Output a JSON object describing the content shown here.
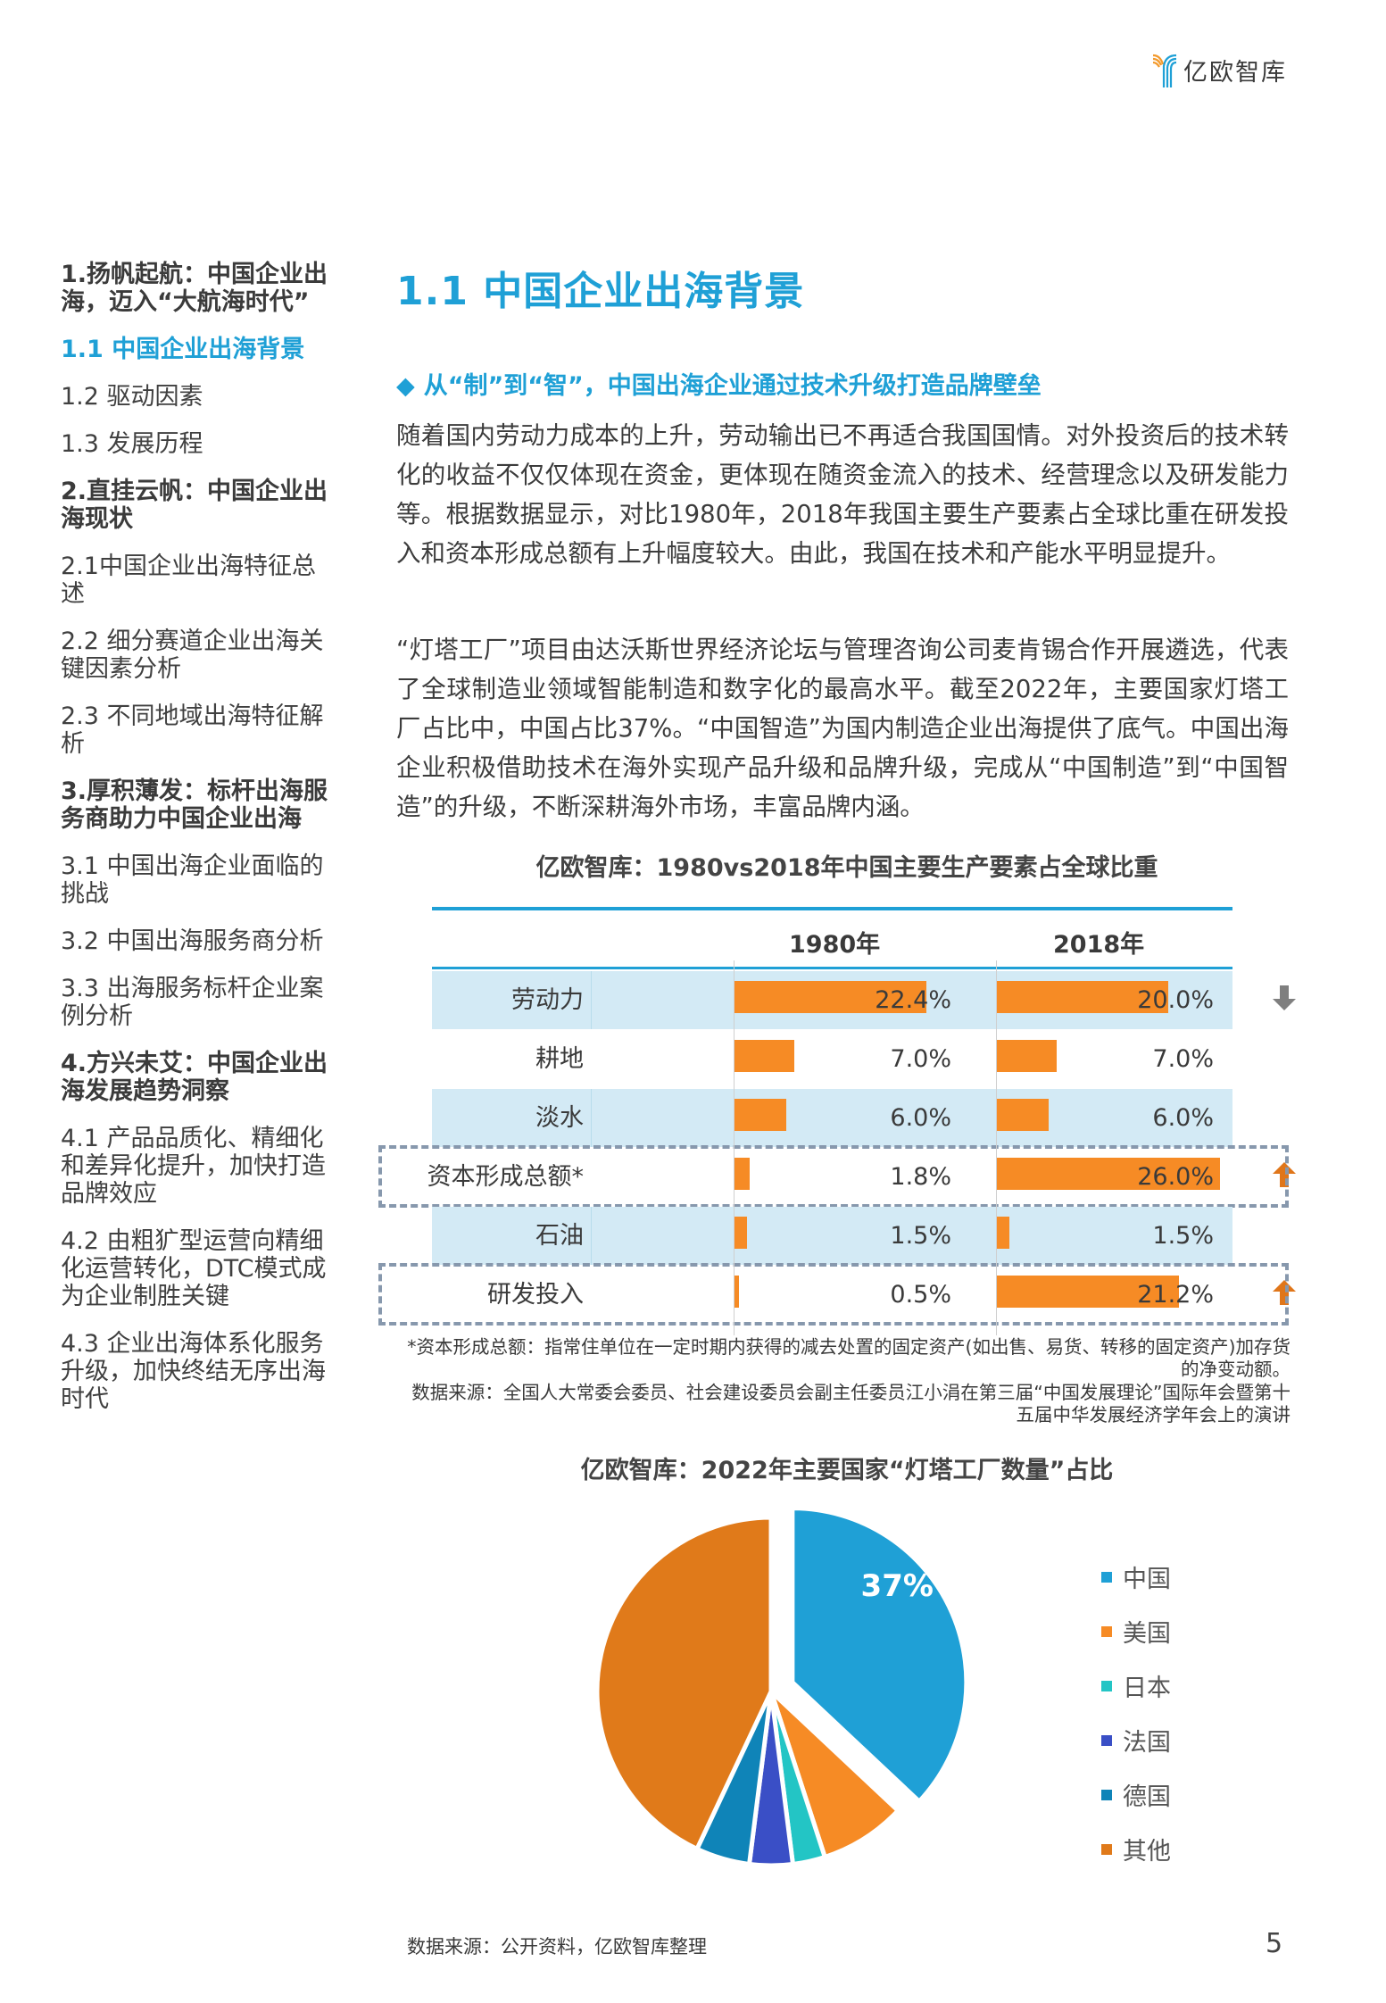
{
  "header": {
    "logo_text": "亿欧智库",
    "logo_colors": {
      "orange": "#f39a2c",
      "blue": "#1fa0d6"
    }
  },
  "toc": {
    "items": [
      {
        "label": "1.扬帆起航：中国企业出海，迈入“大航海时代”",
        "style": "bold"
      },
      {
        "label": "1.1 中国企业出海背景",
        "style": "active"
      },
      {
        "label": "1.2 驱动因素",
        "style": "normal"
      },
      {
        "label": "1.3 发展历程",
        "style": "normal"
      },
      {
        "label": "2.直挂云帆：中国企业出海现状",
        "style": "bold"
      },
      {
        "label": "2.1中国企业出海特征总述",
        "style": "normal"
      },
      {
        "label": "2.2  细分赛道企业出海关键因素分析",
        "style": "normal"
      },
      {
        "label": "2.3  不同地域出海特征解析",
        "style": "normal"
      },
      {
        "label": "3.厚积薄发：标杆出海服务商助力中国企业出海",
        "style": "bold"
      },
      {
        "label": "3.1  中国出海企业面临的挑战",
        "style": "normal"
      },
      {
        "label": "3.2  中国出海服务商分析",
        "style": "normal"
      },
      {
        "label": "3.3  出海服务标杆企业案例分析",
        "style": "normal"
      },
      {
        "label": "4.方兴未艾：中国企业出海发展趋势洞察",
        "style": "bold"
      },
      {
        "label": "4.1  产品品质化、精细化和差异化提升，加快打造品牌效应",
        "style": "normal"
      },
      {
        "label": "4.2  由粗犷型运营向精细化运营转化，DTC模式成为企业制胜关键",
        "style": "normal"
      },
      {
        "label": "4.3  企业出海体系化服务升级，加快终结无序出海时代",
        "style": "normal"
      }
    ]
  },
  "main": {
    "title": "1.1 中国企业出海背景",
    "subtitle_icon": "◆",
    "subtitle": "从“制”到“智”，中国出海企业通过技术升级打造品牌壁垒",
    "paragraphs": [
      "随着国内劳动力成本的上升，劳动输出已不再适合我国国情。对外投资后的技术转化的收益不仅仅体现在资金，更体现在随资金流入的技术、经营理念以及研发能力等。根据数据显示，对比1980年，2018年我国主要生产要素占全球比重在研发投入和资本形成总额有上升幅度较大。由此，我国在技术和产能水平明显提升。",
      "“灯塔工厂”项目由达沃斯世界经济论坛与管理咨询公司麦肯锡合作开展遴选，代表了全球制造业领域智能制造和数字化的最高水平。截至2022年，主要国家灯塔工厂占比中，中国占比37%。“中国智造”为国内制造企业出海提供了底气。中国出海企业积极借助技术在海外实现产品升级和品牌升级，完成从“中国制造”到“中国智造”的升级，不断深耕海外市场，丰富品牌内涵。"
    ],
    "note_capital": "*资本形成总额：指常住单位在一定时期内获得的减去处置的固定资产(如出售、易货、转移的固定资产)加存货的净变动额。",
    "note_source": "数据来源：全国人大常委会委员、社会建设委员会副主任委员江小涓在第三届“中国发展理论”国际年会暨第十五届中华发展经济学年会上的演讲",
    "footer_source": "数据来源：公开资料，亿欧智库整理",
    "page_number": "5"
  },
  "chart_data": [
    {
      "type": "table",
      "title": "亿欧智库：1980vs2018年中国主要生产要素占全球比重",
      "columns": [
        "",
        "1980年",
        "2018年"
      ],
      "bar_color": "#f68b25",
      "row_shade_color": "#d3eaf5",
      "rows": [
        {
          "label": "劳动力",
          "v1980": 22.4,
          "v2018": 20.0,
          "t1980": "22.4%",
          "t2018": "20.0%",
          "trend": "down",
          "shade": true,
          "highlight": false
        },
        {
          "label": "耕地",
          "v1980": 7.0,
          "v2018": 7.0,
          "t1980": "7.0%",
          "t2018": "7.0%",
          "trend": "",
          "shade": false,
          "highlight": false
        },
        {
          "label": "淡水",
          "v1980": 6.0,
          "v2018": 6.0,
          "t1980": "6.0%",
          "t2018": "6.0%",
          "trend": "",
          "shade": true,
          "highlight": false
        },
        {
          "label": "资本形成总额*",
          "v1980": 1.8,
          "v2018": 26.0,
          "t1980": "1.8%",
          "t2018": "26.0%",
          "trend": "up",
          "shade": false,
          "highlight": true
        },
        {
          "label": "石油",
          "v1980": 1.5,
          "v2018": 1.5,
          "t1980": "1.5%",
          "t2018": "1.5%",
          "trend": "",
          "shade": true,
          "highlight": false
        },
        {
          "label": "研发投入",
          "v1980": 0.5,
          "v2018": 21.2,
          "t1980": "0.5%",
          "t2018": "21.2%",
          "trend": "up",
          "shade": false,
          "highlight": true
        }
      ],
      "trend_colors": {
        "down": "#7f7f7f",
        "up": "#e0761a"
      }
    },
    {
      "type": "pie",
      "title": "亿欧智库：2022年主要国家“灯塔工厂数量”占比",
      "labels": [
        "中国",
        "美国",
        "日本",
        "法国",
        "德国",
        "其他"
      ],
      "values": [
        37,
        8,
        3,
        4,
        5,
        43
      ],
      "colors": [
        "#1fa0d6",
        "#f68b25",
        "#23c5c5",
        "#3a4fc6",
        "#0f84b8",
        "#e07a1a"
      ],
      "data_labels": [
        "37%",
        "",
        "",
        "",
        "",
        ""
      ],
      "exploded": [
        true,
        false,
        false,
        false,
        false,
        false
      ],
      "legend_position": "right"
    }
  ]
}
